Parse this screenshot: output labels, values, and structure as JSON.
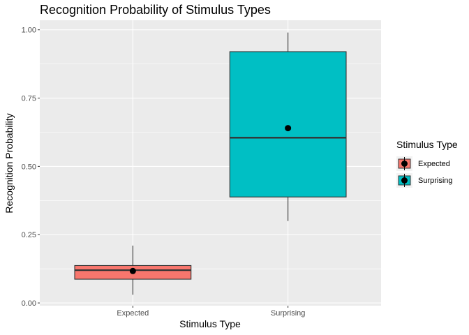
{
  "chart_data": {
    "type": "boxplot",
    "title": "Recognition Probability of Stimulus Types",
    "xlabel": "Stimulus Type",
    "ylabel": "Recognition Probability",
    "ylim": [
      -0.01,
      1.035
    ],
    "y_ticks": [
      "0.00",
      "0.25",
      "0.50",
      "0.75",
      "1.00"
    ],
    "y_tick_values": [
      0,
      0.25,
      0.5,
      0.75,
      1.0
    ],
    "categories": [
      "Expected",
      "Surprising"
    ],
    "boxes": [
      {
        "category": "Expected",
        "whisker_low": 0.03,
        "q1": 0.087,
        "median": 0.12,
        "q3": 0.137,
        "whisker_high": 0.21,
        "mean": 0.117,
        "color": "#F8766D"
      },
      {
        "category": "Surprising",
        "whisker_low": 0.3,
        "q1": 0.388,
        "median": 0.605,
        "q3": 0.92,
        "whisker_high": 0.99,
        "mean": 0.64,
        "color": "#00BFC4"
      }
    ],
    "legend": {
      "title": "Stimulus Type",
      "position": "right",
      "entries": [
        {
          "label": "Expected",
          "color": "#F8766D"
        },
        {
          "label": "Surprising",
          "color": "#00BFC4"
        }
      ]
    },
    "panel_background": "#EBEBEB",
    "grid": true
  }
}
